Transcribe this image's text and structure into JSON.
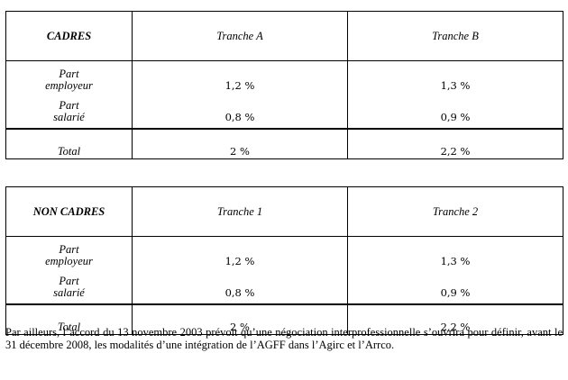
{
  "tables": [
    {
      "header": {
        "label": "CADRES",
        "col1": "Tranche A",
        "col2": "Tranche B"
      },
      "employer": {
        "line1": "Part",
        "line2": "employeur",
        "col1": "1,2 %",
        "col2": "1,3 %"
      },
      "employee": {
        "line1": "Part",
        "line2": "salarié",
        "col1": "0,8 %",
        "col2": "0,9 %"
      },
      "total": {
        "label": "Total",
        "col1": "2 %",
        "col2": "2,2 %"
      }
    },
    {
      "header": {
        "label": "NON CADRES",
        "col1": "Tranche 1",
        "col2": "Tranche 2"
      },
      "employer": {
        "line1": "Part",
        "line2": "employeur",
        "col1": "1,2 %",
        "col2": "1,3 %"
      },
      "employee": {
        "line1": "Part",
        "line2": "salarié",
        "col1": "0,8 %",
        "col2": "0,9 %"
      },
      "total": {
        "label": "Total",
        "col1": "2 %",
        "col2": "2,2 %"
      }
    }
  ],
  "paragraph": "Par ailleurs, l’accord du 13 novembre 2003 prévoit qu’une négociation interprofessionnelle s’ouvrira pour définir, avant le 31 décembre 2008, les modalités d’une intégration de l’AGFF dans l’Agirc et l’Arrco."
}
